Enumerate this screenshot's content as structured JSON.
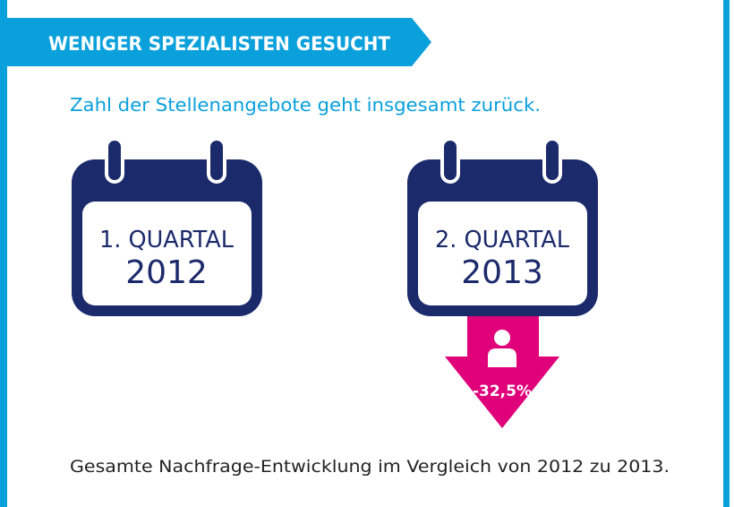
{
  "banner": {
    "title": "WENIGER SPEZIALISTEN GESUCHT"
  },
  "subtitle": "Zahl der Stellenangebote geht insgesamt zurück.",
  "calendars": [
    {
      "line1": "1. QUARTAL",
      "line2": "2012"
    },
    {
      "line1": "2. QUARTAL",
      "line2": "2013"
    }
  ],
  "change": {
    "value": "-32,5%",
    "icon": "person-icon"
  },
  "footer": "Gesamte Nachfrage-Entwicklung im Vergleich von 2012 zu 2013.",
  "colors": {
    "accent": "#0aa0dc",
    "navy": "#1b2a6b",
    "magenta": "#e0007a"
  }
}
